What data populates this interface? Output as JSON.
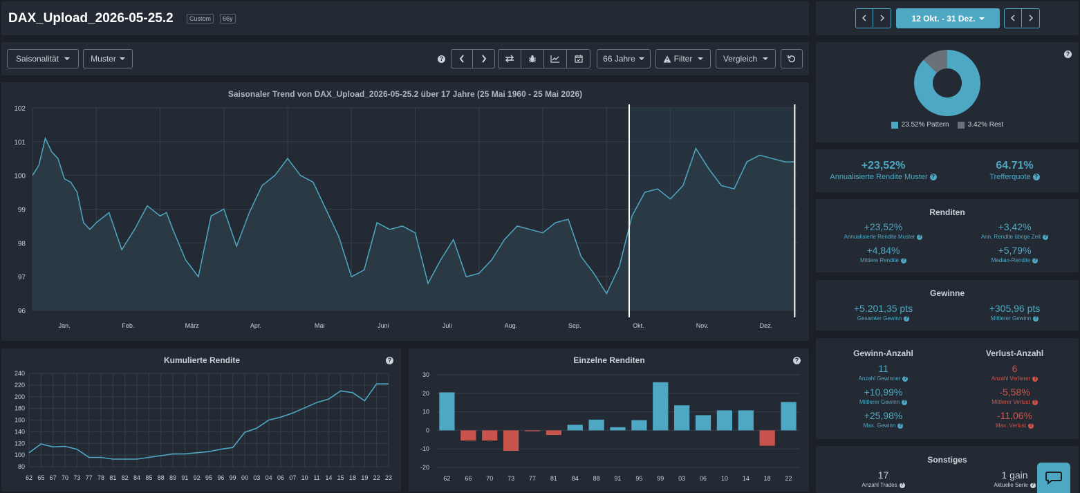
{
  "header": {
    "title": "DAX_Upload_2026-05-25.2",
    "badge_custom": "Custom",
    "badge_years": "66y"
  },
  "toolbar": {
    "seasonality_label": "Saisonalität",
    "pattern_label": "Muster",
    "years_label": "66 Jahre",
    "filter_label": "Filter",
    "compare_label": "Vergleich"
  },
  "range_nav": {
    "range_label": "12 Okt. - 31 Dez."
  },
  "donut": {
    "pattern_legend": "23.52% Pattern",
    "rest_legend": "3.42% Rest",
    "pattern_color": "#4ea8c4",
    "rest_color": "#6b7178",
    "pattern_value": 23.52,
    "rest_value": 3.42
  },
  "summary": {
    "annualized_value": "+23,52%",
    "annualized_label": "Annualisierte Rendite Muster",
    "hit_value": "64.71%",
    "hit_label": "Trefferquote"
  },
  "returns": {
    "title": "Renditen",
    "ann_value": "+23,52%",
    "ann_label": "Annualisierte Rendite Muster",
    "ann_rest_value": "+3,42%",
    "ann_rest_label": "Ann. Rendite übrige Zeit",
    "mean_value": "+4,84%",
    "mean_label": "Mittlere Rendite",
    "median_value": "+5,79%",
    "median_label": "Median-Rendite"
  },
  "profits": {
    "title": "Gewinne",
    "total_value": "+5.201,35 pts",
    "total_label": "Gesamter Gewinn",
    "mean_value": "+305,96 pts",
    "mean_label": "Mittlerer Gewinn"
  },
  "counts": {
    "win_title": "Gewinn-Anzahl",
    "loss_title": "Verlust-Anzahl",
    "winners_value": "11",
    "winners_label": "Anzahl Gewinner",
    "losers_value": "6",
    "losers_label": "Anzahl Verlierer",
    "mean_gain_value": "+10,99%",
    "mean_gain_label": "Mittlerer Gewinn",
    "mean_loss_value": "-5,58%",
    "mean_loss_label": "Mittlerer Verlust",
    "max_gain_value": "+25,98%",
    "max_gain_label": "Max. Gewinn",
    "max_loss_value": "-11,06%",
    "max_loss_label": "Max. Verlust"
  },
  "misc": {
    "title": "Sonstiges",
    "trades_value": "17",
    "trades_label": "Anzahl Trades",
    "streak_value": "1 gain",
    "streak_label": "Aktuelle Serie"
  },
  "icons": {
    "help": "question-circle-icon",
    "prev": "chevron-left-icon",
    "next": "chevron-right-icon",
    "swap": "swap-arrows-icon",
    "bug": "bug-icon",
    "line_chart": "line-chart-icon",
    "calendar": "calendar-icon",
    "warning": "warning-icon",
    "reset": "reset-icon",
    "chat": "chat-icon"
  },
  "chart_data": [
    {
      "type": "area",
      "title": "Saisonaler Trend von DAX_Upload_2026-05-25.2 über 17 Jahre (25 Mai 1960 - 25 Mai 2026)",
      "x_tick_labels": [
        "Jan.",
        "Feb.",
        "März",
        "Apr.",
        "Mai",
        "Juni",
        "Juli",
        "Aug.",
        "Sep.",
        "Okt.",
        "Nov.",
        "Dez."
      ],
      "y_ticks": [
        96,
        97,
        98,
        99,
        100,
        101,
        102
      ],
      "ylim": [
        96,
        102
      ],
      "highlight_range": [
        "12 Okt.",
        "31 Dez."
      ],
      "grid": true,
      "x_month": [
        0.0,
        0.1,
        0.2,
        0.3,
        0.4,
        0.5,
        0.6,
        0.7,
        0.8,
        0.9,
        1.0,
        1.2,
        1.4,
        1.6,
        1.8,
        2.0,
        2.1,
        2.2,
        2.4,
        2.6,
        2.8,
        3.0,
        3.2,
        3.4,
        3.6,
        3.8,
        4.0,
        4.2,
        4.4,
        4.6,
        4.8,
        5.0,
        5.2,
        5.4,
        5.6,
        5.8,
        6.0,
        6.2,
        6.4,
        6.6,
        6.8,
        7.0,
        7.2,
        7.4,
        7.6,
        7.8,
        8.0,
        8.2,
        8.4,
        8.6,
        8.8,
        9.0,
        9.2,
        9.4,
        9.6,
        9.8,
        10.0,
        10.2,
        10.4,
        10.6,
        10.8,
        11.0,
        11.2,
        11.4,
        11.6,
        11.8,
        11.95
      ],
      "y": [
        100.0,
        100.3,
        101.1,
        100.7,
        100.5,
        99.9,
        99.8,
        99.5,
        98.6,
        98.4,
        98.6,
        98.9,
        97.8,
        98.4,
        99.1,
        98.8,
        98.9,
        98.4,
        97.5,
        97.0,
        98.8,
        99.0,
        97.9,
        98.9,
        99.7,
        100.0,
        100.5,
        100.0,
        99.8,
        99.0,
        98.2,
        97.0,
        97.2,
        98.6,
        98.4,
        98.5,
        98.3,
        96.8,
        97.5,
        98.1,
        97.0,
        97.1,
        97.5,
        98.1,
        98.5,
        98.4,
        98.3,
        98.6,
        98.7,
        97.6,
        97.1,
        96.5,
        97.3,
        98.8,
        99.5,
        99.6,
        99.3,
        99.7,
        100.8,
        100.2,
        99.7,
        99.6,
        100.4,
        100.6,
        100.5,
        100.4,
        100.4
      ]
    },
    {
      "type": "line",
      "title": "Kumulierte Rendite",
      "x": [
        "62",
        "65",
        "67",
        "70",
        "73",
        "77",
        "78",
        "81",
        "82",
        "84",
        "85",
        "88",
        "89",
        "91",
        "92",
        "95",
        "96",
        "99",
        "00",
        "03",
        "04",
        "06",
        "07",
        "10",
        "11",
        "14",
        "15",
        "18",
        "19",
        "22",
        "23"
      ],
      "x_tick_labels": [
        "62",
        "65",
        "67",
        "70",
        "73",
        "77",
        "78",
        "81",
        "82",
        "84",
        "85",
        "88",
        "89",
        "91",
        "92",
        "95",
        "96",
        "99",
        "00",
        "03",
        "04",
        "06",
        "07",
        "10",
        "11",
        "14",
        "15",
        "18",
        "19",
        "22",
        "23"
      ],
      "y_ticks": [
        80,
        100,
        120,
        140,
        160,
        180,
        200,
        220,
        240
      ],
      "ylim": [
        80,
        240
      ],
      "values": [
        104,
        119,
        114,
        115,
        110,
        96,
        96,
        93,
        93,
        93,
        96,
        99,
        102,
        102,
        104,
        106,
        110,
        113,
        139,
        146,
        160,
        165,
        172,
        181,
        190,
        196,
        210,
        207,
        193,
        222,
        222
      ]
    },
    {
      "type": "bar",
      "title": "Einzelne Renditen",
      "categories": [
        "62",
        "66",
        "70",
        "73",
        "77",
        "81",
        "84",
        "88",
        "91",
        "95",
        "99",
        "03",
        "06",
        "10",
        "14",
        "18",
        "22"
      ],
      "values": [
        20.5,
        -5.5,
        -5.5,
        -11.06,
        -0.5,
        -2.5,
        3.0,
        5.8,
        1.7,
        5.5,
        25.98,
        13.5,
        8.2,
        10.8,
        10.8,
        -8.3,
        15.3
      ],
      "y_ticks": [
        -20,
        -10,
        0,
        10,
        20,
        30
      ],
      "ylim": [
        -20,
        30
      ],
      "pos_color": "#4ea8c4",
      "neg_color": "#c9534d"
    }
  ]
}
